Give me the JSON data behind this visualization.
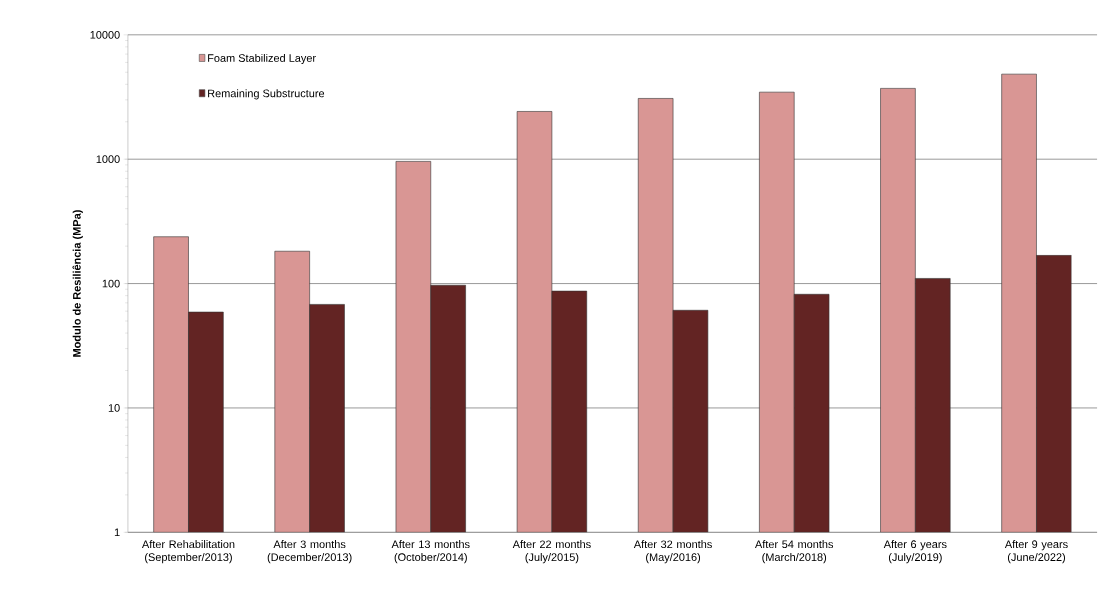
{
  "chart_data": {
    "type": "bar",
    "ylabel": "Modulo de Resiliência (MPa)",
    "categories": [
      "After Rehabilitation (September/2013)",
      "After 3 months (December/2013)",
      "After 13 months (October/2014)",
      "After 22 months (July/2015)",
      "After 32 months (May/2016)",
      "After 54 months (March/2018)",
      "After 6 years (July/2019)",
      "After 9 years (June/2022)"
    ],
    "series": [
      {
        "name": "Foam Stabilized Layer",
        "color": "#d99694",
        "values": [
          238,
          182,
          960,
          2420,
          3080,
          3460,
          3710,
          4830
        ]
      },
      {
        "name": "Remaining Substructure",
        "color": "#632423",
        "values": [
          59,
          68,
          97,
          87,
          61,
          82,
          110,
          169
        ]
      }
    ],
    "ylim": [
      1,
      10000
    ],
    "yticks": [
      1,
      10,
      100,
      1000,
      10000
    ],
    "log": true,
    "grid": "y",
    "legend": "top left"
  }
}
